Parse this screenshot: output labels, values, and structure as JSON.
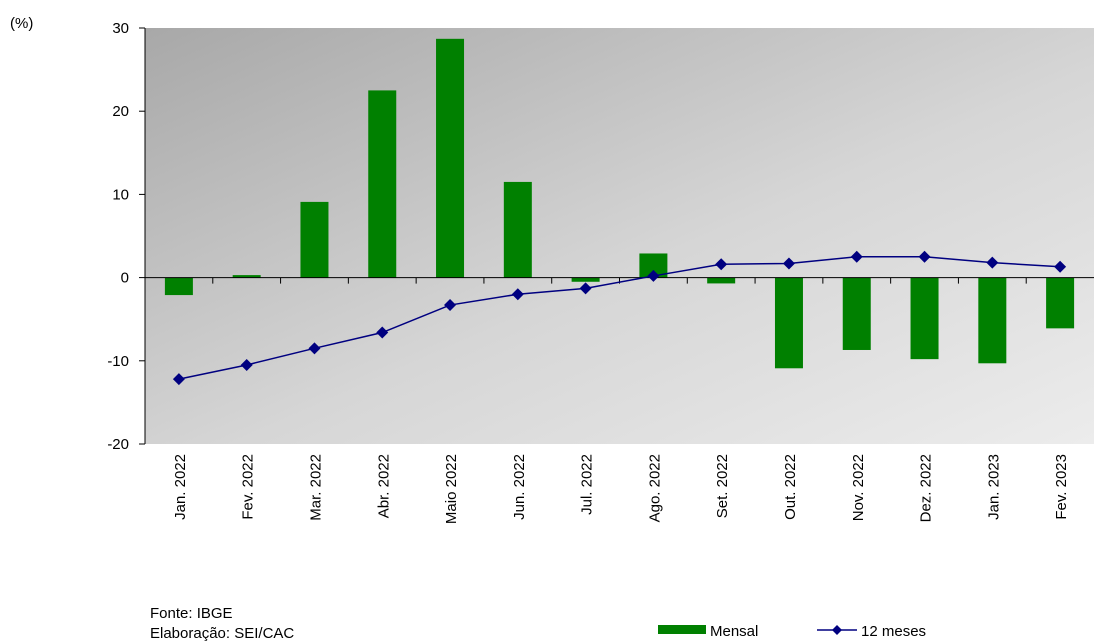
{
  "chart_data": {
    "type": "bar-line",
    "y_label": "(%)",
    "categories": [
      "Jan. 2022",
      "Fev. 2022",
      "Mar. 2022",
      "Abr. 2022",
      "Maio 2022",
      "Jun. 2022",
      "Jul. 2022",
      "Ago. 2022",
      "Set. 2022",
      "Out. 2022",
      "Nov. 2022",
      "Dez. 2022",
      "Jan. 2023",
      "Fev. 2023"
    ],
    "series": [
      {
        "name": "Mensal",
        "type": "bar",
        "color": "#008000",
        "values": [
          -2.1,
          0.3,
          9.1,
          22.5,
          28.7,
          11.5,
          -0.5,
          2.9,
          -0.7,
          -10.9,
          -8.7,
          -9.8,
          -10.3,
          -6.1
        ]
      },
      {
        "name": "12 meses",
        "type": "line",
        "color": "#000080",
        "values": [
          -12.2,
          -10.5,
          -8.5,
          -6.6,
          -3.3,
          -2.0,
          -1.3,
          0.2,
          1.6,
          1.7,
          2.5,
          2.5,
          1.8,
          1.3
        ]
      }
    ],
    "ylim": [
      -20,
      30
    ],
    "yticks": [
      -20,
      -10,
      0,
      10,
      20,
      30
    ],
    "source": "Fonte: IBGE",
    "credit": "Elaboração: SEI/CAC",
    "legend": "bottom-right"
  }
}
